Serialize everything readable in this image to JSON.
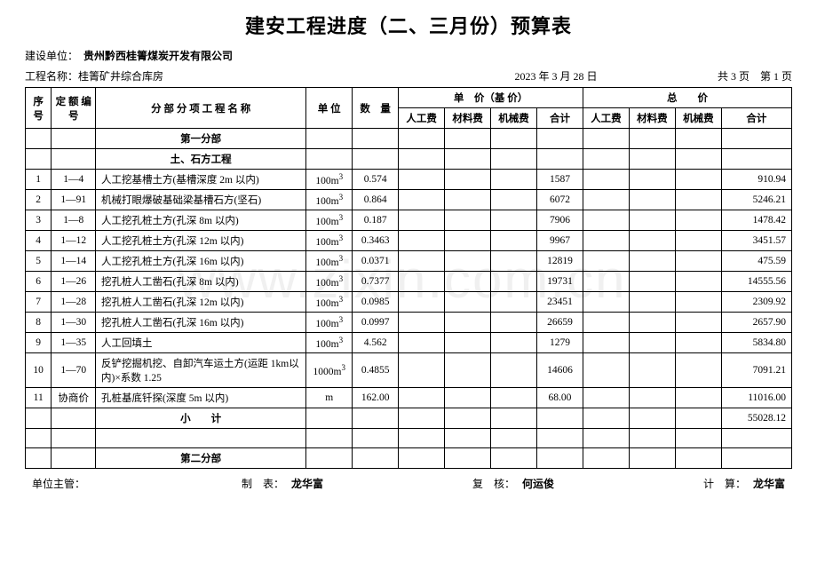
{
  "title": "建安工程进度（二、三月份）预算表",
  "meta": {
    "unit_label": "建设单位：",
    "unit_value": "贵州黔西桂箐煤炭开发有限公司",
    "project_label": "工程名称：",
    "project_value": "桂箐矿井综合库房",
    "date": "2023 年 3 月 28 日",
    "page_info": "共 3 页　第 1 页"
  },
  "headers": {
    "seq": "序号",
    "code": "定 额 编  号",
    "name": "分 部 分 项 工 程 名 称",
    "unit": "单 位",
    "qty": "数　量",
    "unit_price_group": "单　价（基 价）",
    "total_price_group": "总　　价",
    "labor": "人工费",
    "material": "材料费",
    "machine": "机械费",
    "subtotal": "合计"
  },
  "sections": {
    "s1": "第一分部",
    "s1sub": "土、石方工程",
    "subtotal": "小　　计",
    "s2": "第二分部"
  },
  "rows": [
    {
      "seq": "1",
      "code": "1—4",
      "name": "人工挖基槽土方(基槽深度 2m 以内)",
      "unit": "100m³",
      "qty": "0.574",
      "up_sub": "1587",
      "t_sub": "910.94"
    },
    {
      "seq": "2",
      "code": "1—91",
      "name": "机械打眼爆破基础梁基槽石方(坚石)",
      "unit": "100m³",
      "qty": "0.864",
      "up_sub": "6072",
      "t_sub": "5246.21"
    },
    {
      "seq": "3",
      "code": "1—8",
      "name": "人工挖孔桩土方(孔深 8m 以内)",
      "unit": "100m³",
      "qty": "0.187",
      "up_sub": "7906",
      "t_sub": "1478.42"
    },
    {
      "seq": "4",
      "code": "1—12",
      "name": "人工挖孔桩土方(孔深 12m 以内)",
      "unit": "100m³",
      "qty": "0.3463",
      "up_sub": "9967",
      "t_sub": "3451.57"
    },
    {
      "seq": "5",
      "code": "1—14",
      "name": "人工挖孔桩土方(孔深 16m 以内)",
      "unit": "100m³",
      "qty": "0.0371",
      "up_sub": "12819",
      "t_sub": "475.59"
    },
    {
      "seq": "6",
      "code": "1—26",
      "name": "挖孔桩人工凿石(孔深 8m 以内)",
      "unit": "100m³",
      "qty": "0.7377",
      "up_sub": "19731",
      "t_sub": "14555.56"
    },
    {
      "seq": "7",
      "code": "1—28",
      "name": "挖孔桩人工凿石(孔深 12m 以内)",
      "unit": "100m³",
      "qty": "0.0985",
      "up_sub": "23451",
      "t_sub": "2309.92"
    },
    {
      "seq": "8",
      "code": "1—30",
      "name": "挖孔桩人工凿石(孔深 16m 以内)",
      "unit": "100m³",
      "qty": "0.0997",
      "up_sub": "26659",
      "t_sub": "2657.90"
    },
    {
      "seq": "9",
      "code": "1—35",
      "name": "人工回填土",
      "unit": "100m³",
      "qty": "4.562",
      "up_sub": "1279",
      "t_sub": "5834.80"
    },
    {
      "seq": "10",
      "code": "1—70",
      "name": "反铲挖掘机挖、自卸汽车运土方(运距 1km以内)×系数 1.25",
      "unit": "1000m³",
      "qty": "0.4855",
      "up_sub": "14606",
      "t_sub": "7091.21"
    },
    {
      "seq": "11",
      "code": "协商价",
      "name": "孔桩基底钎探(深度 5m 以内)",
      "unit": "m",
      "qty": "162.00",
      "up_sub": "68.00",
      "t_sub": "11016.00"
    }
  ],
  "subtotal_value": "55028.12",
  "footer": {
    "supervisor_label": "单位主管：",
    "maker_label": "制　表：",
    "maker_value": "龙华富",
    "reviewer_label": "复　核：",
    "reviewer_value": "何运俊",
    "calculator_label": "计　算：",
    "calculator_value": "龙华富"
  },
  "watermark": "www.zixin.com.cn"
}
